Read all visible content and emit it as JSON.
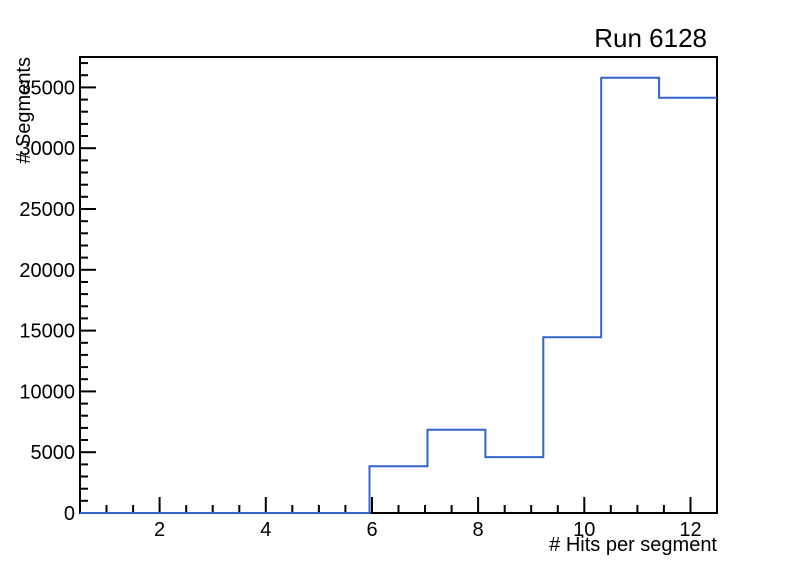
{
  "chart_data": {
    "type": "histogram",
    "title": "Run 6128",
    "xlabel": "# Hits per segment",
    "ylabel": "# Segments",
    "xlim": [
      0.5,
      12.5
    ],
    "ylim": [
      0,
      37500
    ],
    "n_bins": 11,
    "bin_edges": [
      0.5,
      1.5909,
      2.6818,
      3.7727,
      4.8636,
      5.9545,
      7.0455,
      8.1364,
      9.2273,
      10.3182,
      11.4091,
      12.5
    ],
    "values": [
      0,
      0,
      0,
      0,
      0,
      3850,
      6850,
      4600,
      14450,
      35800,
      34150
    ],
    "x_major_ticks": [
      2,
      4,
      6,
      8,
      10,
      12
    ],
    "x_minor_step": 0.5,
    "y_major_ticks": [
      0,
      5000,
      10000,
      15000,
      20000,
      25000,
      30000,
      35000
    ],
    "y_minor_step": 1000,
    "grid": false,
    "legend": "none",
    "line_color": "#3465c8",
    "axis_color": "#000000",
    "background_color": "#ffffff"
  }
}
